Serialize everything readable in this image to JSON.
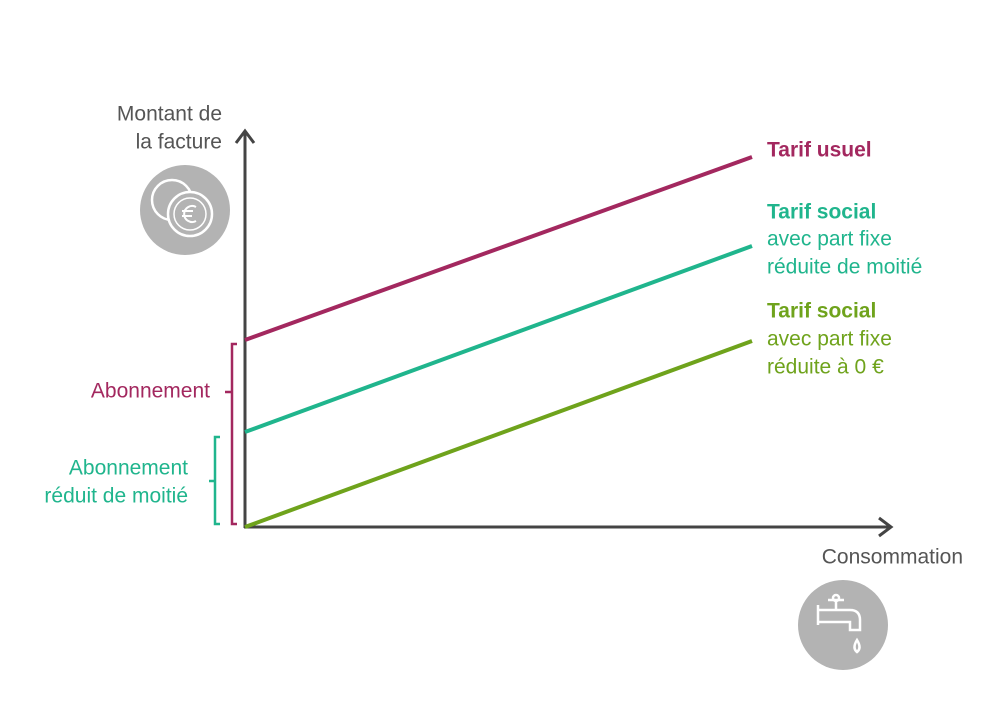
{
  "axes": {
    "y_label": [
      "Montant de",
      "la facture"
    ],
    "x_label": "Consommation"
  },
  "lines": [
    {
      "title": "Tarif usuel",
      "detail": []
    },
    {
      "title": "Tarif social",
      "detail": [
        "avec part fixe",
        "réduite de moitié"
      ]
    },
    {
      "title": "Tarif social",
      "detail": [
        "avec part fixe",
        "réduite à 0 €"
      ]
    }
  ],
  "brackets": [
    {
      "label": [
        "Abonnement"
      ]
    },
    {
      "label": [
        "Abonnement",
        "réduit de moitié"
      ]
    }
  ]
}
